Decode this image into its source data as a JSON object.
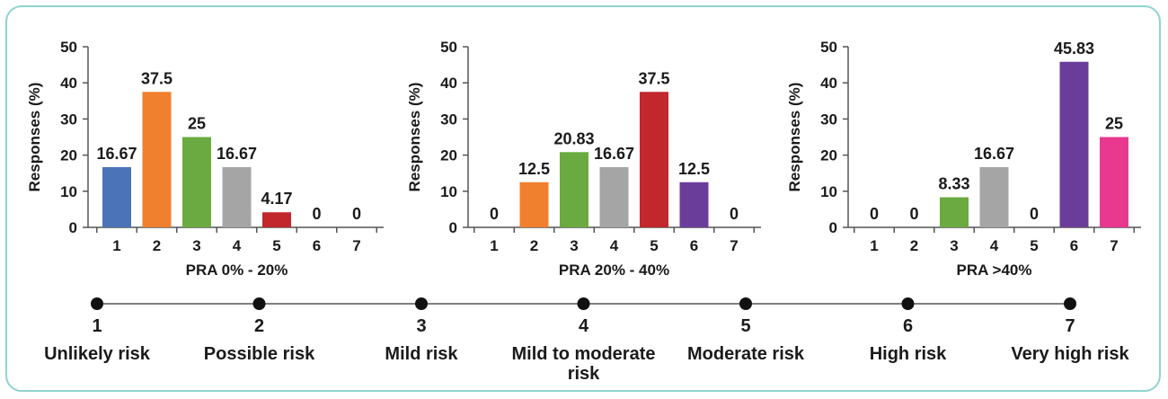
{
  "colors": {
    "1": "#4a74b7",
    "2": "#f07f2e",
    "3": "#6aaa40",
    "4": "#a5a5a5",
    "5": "#c1272d",
    "6": "#6a3d9a",
    "7": "#e8398f",
    "frame": "#8fd3d0"
  },
  "chart_data": [
    {
      "type": "bar",
      "title": "",
      "xlabel": "PRA 0% - 20%",
      "ylabel": "Responses (%)",
      "ylim": [
        0,
        50
      ],
      "yticks": [
        0,
        10,
        20,
        30,
        40,
        50
      ],
      "categories": [
        "1",
        "2",
        "3",
        "4",
        "5",
        "6",
        "7"
      ],
      "values": [
        16.67,
        37.5,
        25,
        16.67,
        4.17,
        0,
        0
      ],
      "labels": [
        "16.67",
        "37.5",
        "25",
        "16.67",
        "4.17",
        "0",
        "0"
      ]
    },
    {
      "type": "bar",
      "title": "",
      "xlabel": "PRA 20% - 40%",
      "ylabel": "Responses (%)",
      "ylim": [
        0,
        50
      ],
      "yticks": [
        0,
        10,
        20,
        30,
        40,
        50
      ],
      "categories": [
        "1",
        "2",
        "3",
        "4",
        "5",
        "6",
        "7"
      ],
      "values": [
        0,
        12.5,
        20.83,
        16.67,
        37.5,
        12.5,
        0
      ],
      "labels": [
        "0",
        "12.5",
        "20.83",
        "16.67",
        "37.5",
        "12.5",
        "0"
      ]
    },
    {
      "type": "bar",
      "title": "",
      "xlabel": "PRA >40%",
      "ylabel": "Responses (%)",
      "ylim": [
        0,
        50
      ],
      "yticks": [
        0,
        10,
        20,
        30,
        40,
        50
      ],
      "categories": [
        "1",
        "2",
        "3",
        "4",
        "5",
        "6",
        "7"
      ],
      "values": [
        0,
        0,
        8.33,
        16.67,
        0,
        45.83,
        25
      ],
      "labels": [
        "0",
        "0",
        "8.33",
        "16.67",
        "0",
        "45.83",
        "25"
      ]
    }
  ],
  "risk_scale": [
    {
      "num": "1",
      "label": "Unlikely risk"
    },
    {
      "num": "2",
      "label": "Possible risk"
    },
    {
      "num": "3",
      "label": "Mild risk"
    },
    {
      "num": "4",
      "label": "Mild to moderate risk"
    },
    {
      "num": "5",
      "label": "Moderate risk"
    },
    {
      "num": "6",
      "label": "High risk"
    },
    {
      "num": "7",
      "label": "Very high risk"
    }
  ]
}
